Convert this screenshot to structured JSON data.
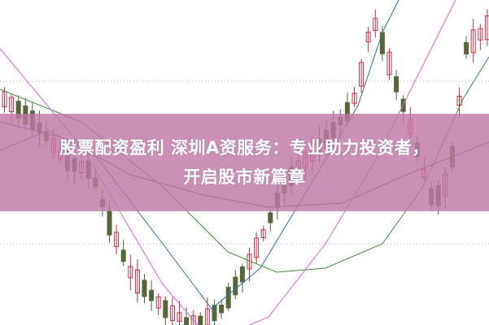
{
  "headline": {
    "line1": "股票配资盈利 深圳A资服务：专业助力投资者，",
    "line2": "开启股市新篇章"
  },
  "colors": {
    "banner": "#c98fb5",
    "up_candle": "#c0304a",
    "down_candle": "#56653a",
    "ma_lines": [
      "#2f6f9f",
      "#6a3f7a",
      "#3d8a3d",
      "#d266c8"
    ]
  }
}
